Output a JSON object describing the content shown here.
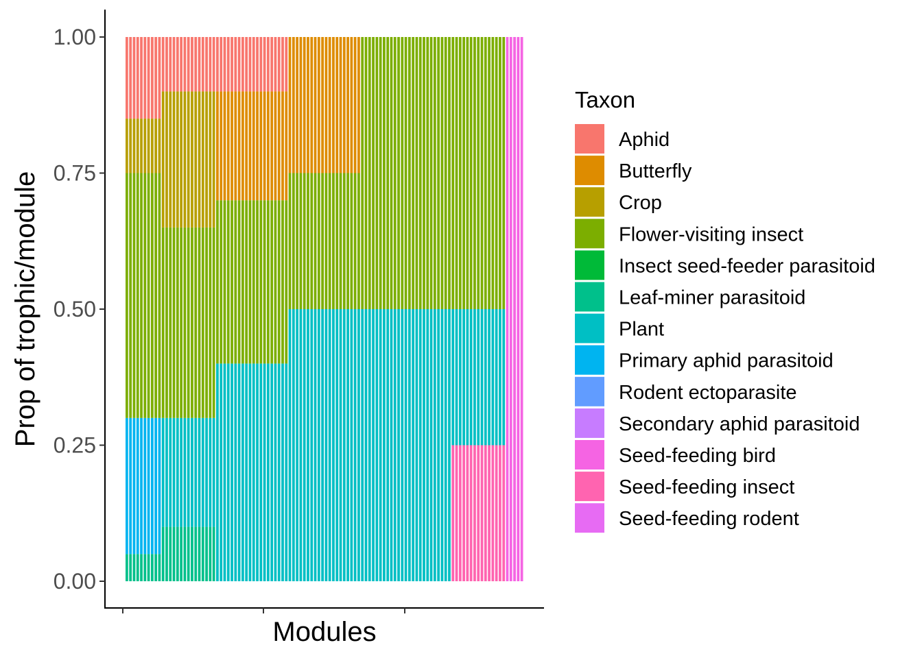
{
  "chart_data": {
    "type": "bar",
    "stacked": true,
    "xlabel": "Modules",
    "ylabel": "Prop of trophic/module",
    "ylim": [
      0,
      1
    ],
    "yticks": [
      "0.00",
      "0.25",
      "0.50",
      "0.75",
      "1.00"
    ],
    "grid": false,
    "legend_position": "right",
    "legend_title": "Taxon",
    "legend": [
      {
        "name": "Aphid",
        "color": "#F8766D"
      },
      {
        "name": "Butterfly",
        "color": "#DE8C00"
      },
      {
        "name": "Crop",
        "color": "#B79F00"
      },
      {
        "name": "Flower-visiting insect",
        "color": "#7CAE00"
      },
      {
        "name": "Insect seed-feeder parasitoid",
        "color": "#00BA38"
      },
      {
        "name": "Leaf-miner parasitoid",
        "color": "#00C08B"
      },
      {
        "name": "Plant",
        "color": "#00BFC4"
      },
      {
        "name": "Primary aphid parasitoid",
        "color": "#00B4F0"
      },
      {
        "name": "Rodent ectoparasite",
        "color": "#619CFF"
      },
      {
        "name": "Secondary aphid parasitoid",
        "color": "#C77CFF"
      },
      {
        "name": "Seed-feeding bird",
        "color": "#F564E3"
      },
      {
        "name": "Seed-feeding insect",
        "color": "#FF64B0"
      },
      {
        "name": "Seed-feeding rodent",
        "color": "#E76BF3"
      }
    ],
    "module_groups": [
      {
        "count": 10,
        "composition": {
          "Leaf-miner parasitoid": 0.05,
          "Primary aphid parasitoid": 0.25,
          "Flower-visiting insect": 0.45,
          "Crop": 0.1,
          "Aphid": 0.15
        }
      },
      {
        "count": 15,
        "composition": {
          "Leaf-miner parasitoid": 0.1,
          "Plant": 0.2,
          "Flower-visiting insect": 0.35,
          "Crop": 0.25,
          "Aphid": 0.1
        }
      },
      {
        "count": 20,
        "composition": {
          "Plant": 0.4,
          "Flower-visiting insect": 0.3,
          "Butterfly": 0.2,
          "Aphid": 0.1
        }
      },
      {
        "count": 20,
        "composition": {
          "Plant": 0.5,
          "Flower-visiting insect": 0.25,
          "Butterfly": 0.25
        }
      },
      {
        "count": 25,
        "composition": {
          "Plant": 0.5,
          "Flower-visiting insect": 0.5
        }
      },
      {
        "count": 15,
        "composition": {
          "Seed-feeding insect": 0.25,
          "Plant": 0.25,
          "Flower-visiting insect": 0.5
        }
      },
      {
        "count": 5,
        "composition": {
          "Seed-feeding bird": 1.0
        }
      }
    ]
  }
}
